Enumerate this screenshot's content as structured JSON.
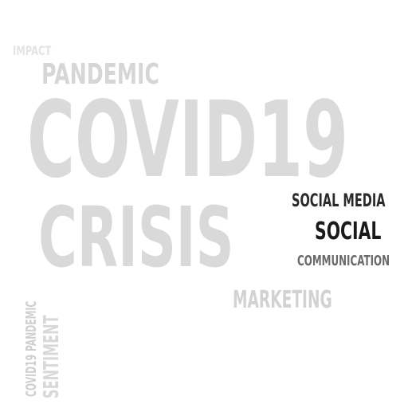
{
  "word_cloud": {
    "words": [
      {
        "text": "IMPACT",
        "color": "#e4e4e4"
      },
      {
        "text": "PANDEMIC",
        "color": "#d6d6d6"
      },
      {
        "text": "COVID19",
        "color": "#dadada"
      },
      {
        "text": "CRISIS",
        "color": "#d9d9d9"
      },
      {
        "text": "SOCIAL MEDIA",
        "color": "#2a2a2a"
      },
      {
        "text": "SOCIAL",
        "color": "#1a1a1a"
      },
      {
        "text": "COMMUNICATION",
        "color": "#6a6a6a"
      },
      {
        "text": "MARKETING",
        "color": "#d2d2d2"
      },
      {
        "text": "COVID19 PANDEMIC",
        "color": "#cfcfcf"
      },
      {
        "text": "SENTIMENT",
        "color": "#d8d8d8"
      }
    ]
  }
}
